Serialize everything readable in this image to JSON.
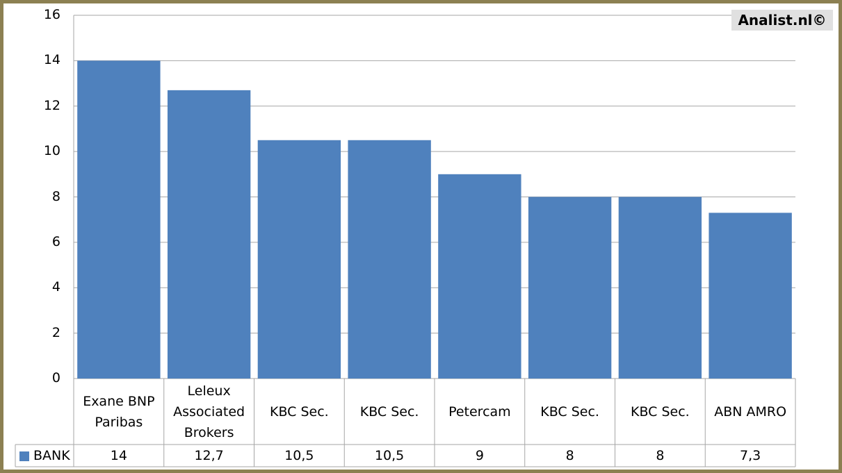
{
  "chart_data": {
    "type": "bar",
    "annotation": "Analist.nl©",
    "categories": [
      "Exane BNP Paribas",
      "Leleux Associated Brokers",
      "KBC Sec.",
      "KBC Sec.",
      "Petercam",
      "KBC Sec.",
      "KBC Sec.",
      "ABN AMRO"
    ],
    "series": [
      {
        "name": "BANK",
        "color": "#4f81bd",
        "values": [
          14,
          12.7,
          10.5,
          10.5,
          9,
          8,
          8,
          7.3
        ],
        "value_labels": [
          "14",
          "12,7",
          "10,5",
          "10,5",
          "9",
          "8",
          "8",
          "7,3"
        ]
      }
    ],
    "ylim": [
      0,
      16
    ],
    "yticks": [
      0,
      2,
      4,
      6,
      8,
      10,
      12,
      14,
      16
    ],
    "grid": true
  }
}
